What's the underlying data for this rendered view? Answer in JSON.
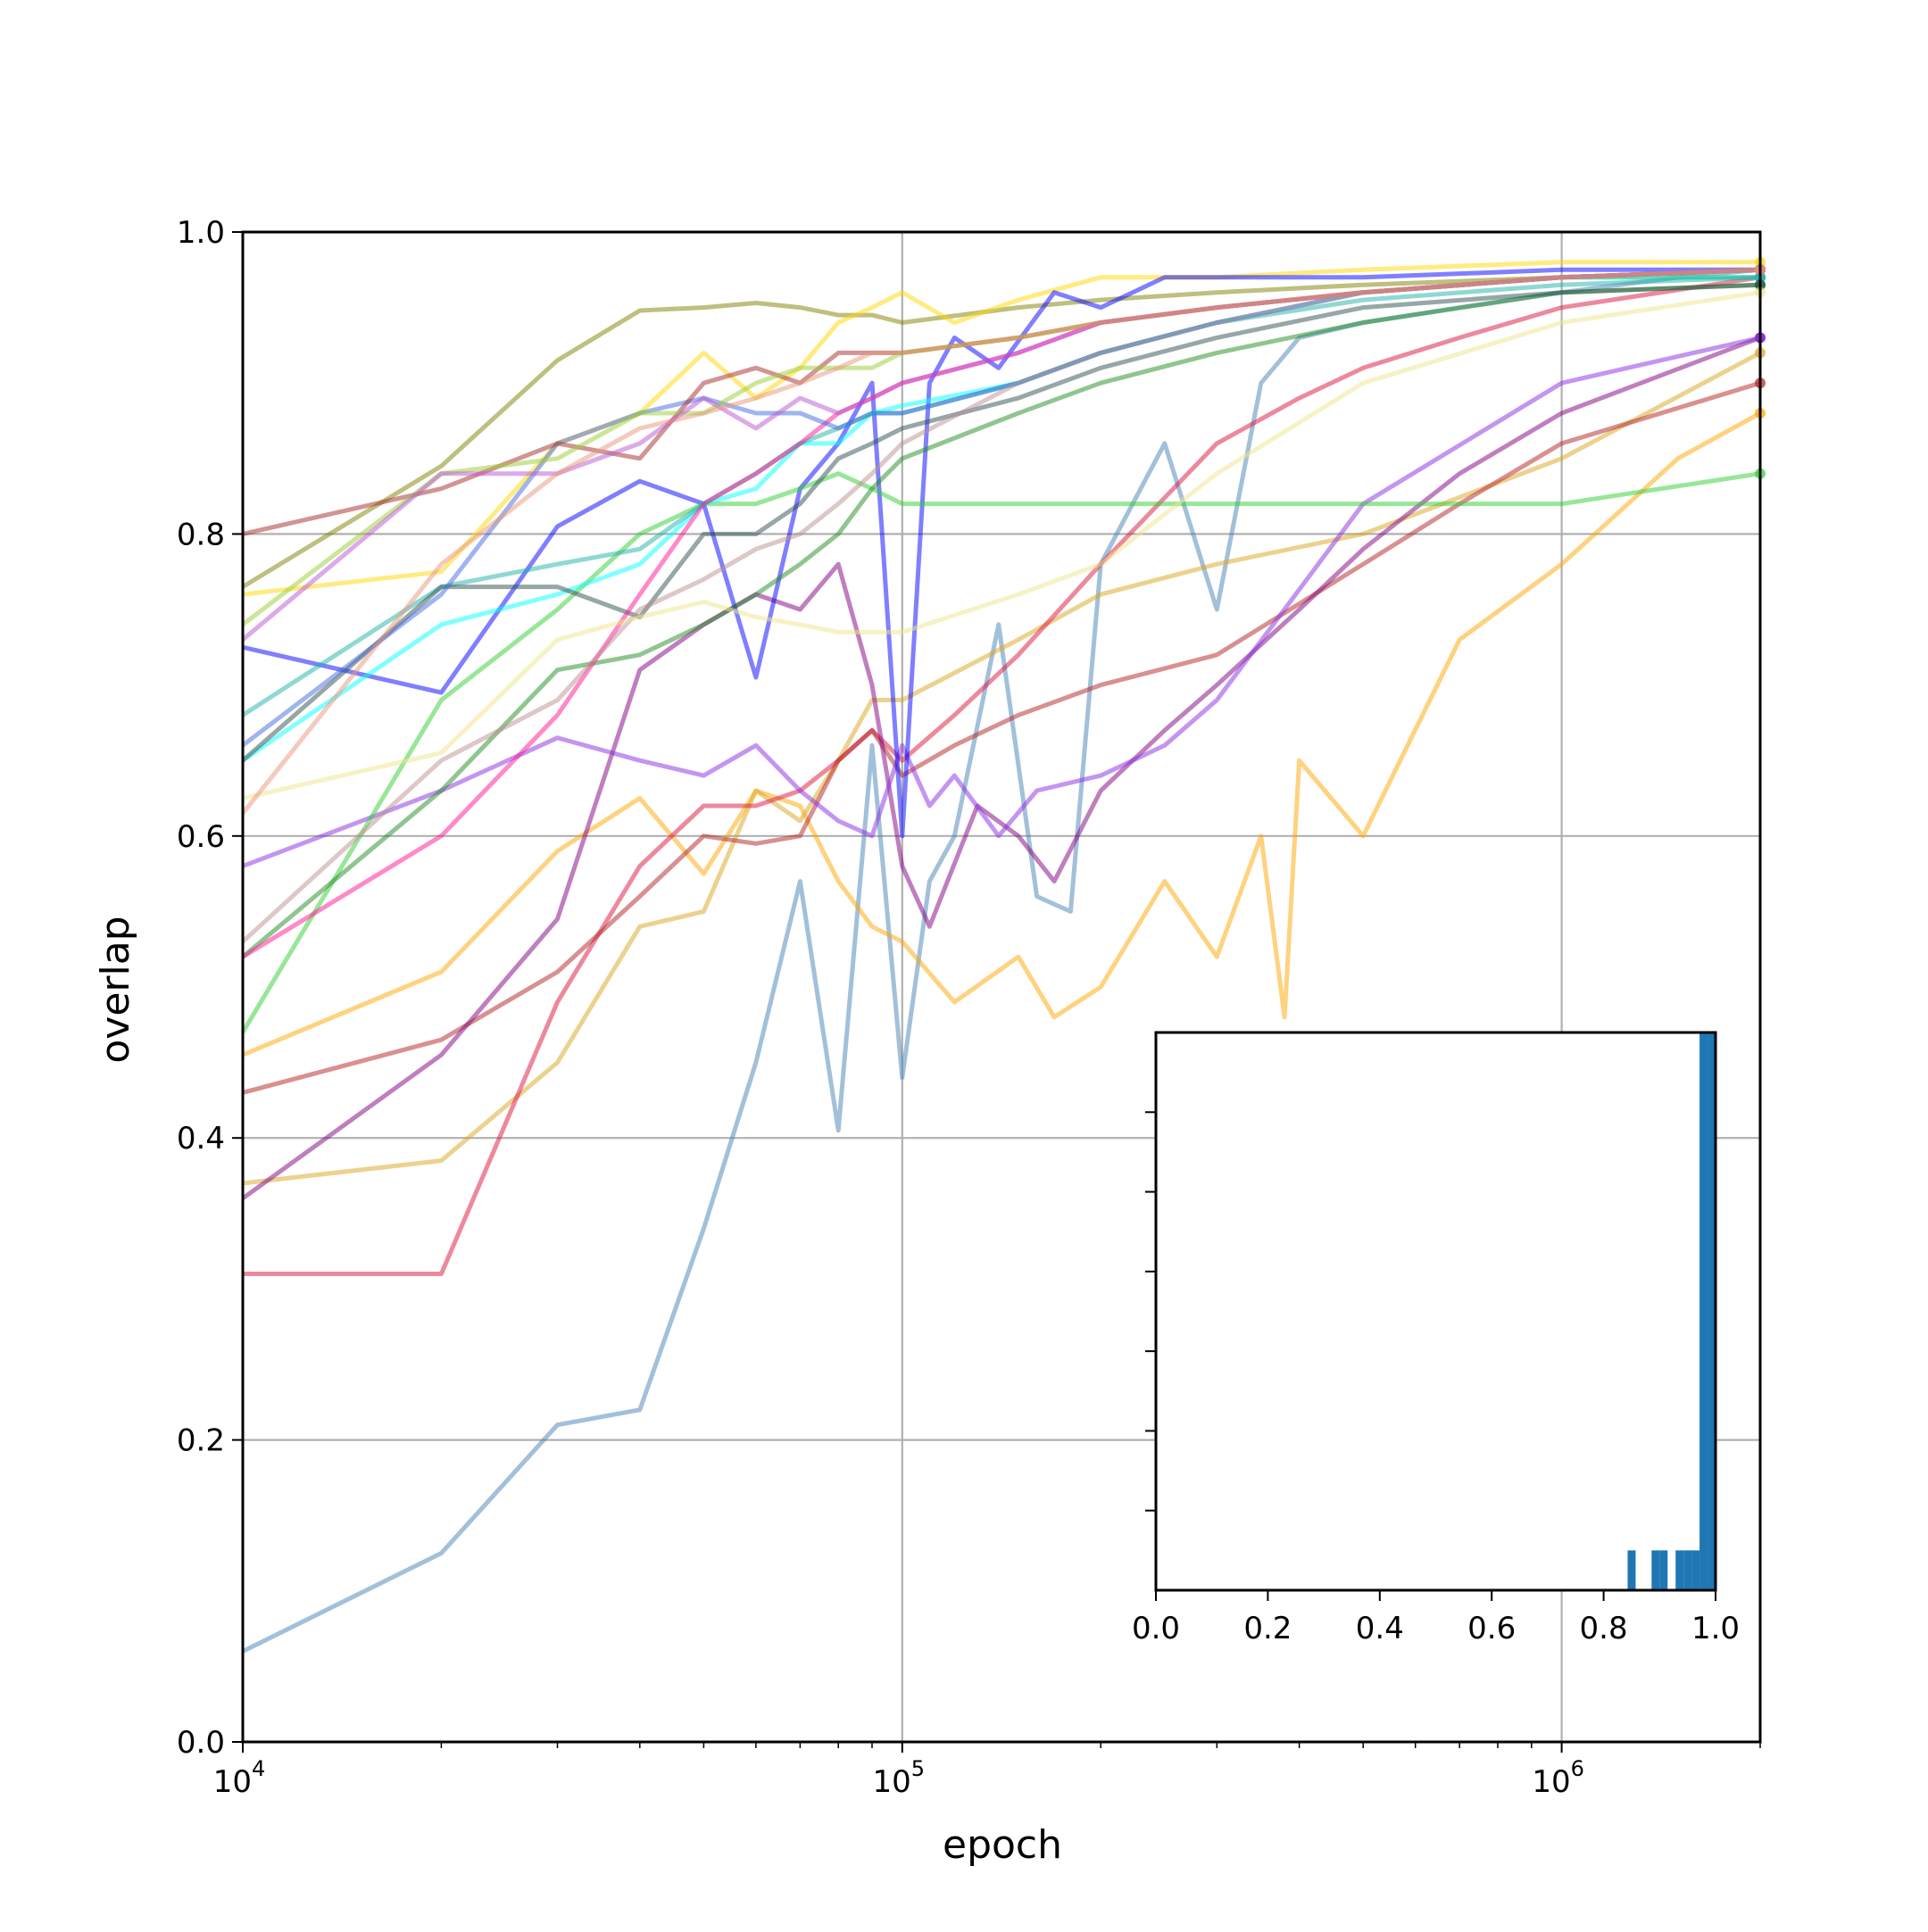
{
  "chart_data": [
    {
      "type": "line",
      "title": "",
      "xlabel": "epoch",
      "ylabel": "overlap",
      "xscale": "log",
      "xlim": [
        10000,
        2000000
      ],
      "ylim": [
        0.0,
        1.0
      ],
      "grid": true,
      "x_ticks": [
        {
          "value": 10000,
          "base": "10",
          "exp": "4"
        },
        {
          "value": 100000,
          "base": "10",
          "exp": "5"
        },
        {
          "value": 1000000,
          "base": "10",
          "exp": "6"
        }
      ],
      "y_ticks": [
        "0.0",
        "0.2",
        "0.4",
        "0.6",
        "0.8",
        "1.0"
      ],
      "series": [
        {
          "color": "#4682b4",
          "x": [
            10000,
            20000,
            30000,
            40000,
            50000,
            60000,
            70000,
            80000,
            90000,
            100000,
            110000,
            120000,
            140000,
            160000,
            180000,
            200000,
            250000,
            300000,
            350000,
            400000,
            500000,
            700000,
            1000000,
            1500000,
            2000000
          ],
          "y": [
            0.06,
            0.125,
            0.21,
            0.22,
            0.34,
            0.45,
            0.57,
            0.405,
            0.66,
            0.44,
            0.57,
            0.6,
            0.74,
            0.56,
            0.55,
            0.78,
            0.86,
            0.75,
            0.9,
            0.93,
            0.94,
            0.95,
            0.96,
            0.97,
            0.975
          ]
        },
        {
          "color": "#808000",
          "x": [
            10000,
            20000,
            30000,
            40000,
            50000,
            60000,
            70000,
            80000,
            90000,
            100000,
            150000,
            200000,
            300000,
            500000,
            1000000,
            2000000
          ],
          "y": [
            0.765,
            0.845,
            0.915,
            0.948,
            0.95,
            0.953,
            0.95,
            0.945,
            0.945,
            0.94,
            0.95,
            0.955,
            0.96,
            0.965,
            0.97,
            0.97
          ]
        },
        {
          "color": "#ffd700",
          "x": [
            10000,
            20000,
            30000,
            40000,
            50000,
            60000,
            70000,
            80000,
            90000,
            100000,
            120000,
            150000,
            200000,
            300000,
            500000,
            1000000,
            2000000
          ],
          "y": [
            0.76,
            0.775,
            0.86,
            0.88,
            0.92,
            0.89,
            0.91,
            0.94,
            0.95,
            0.96,
            0.94,
            0.955,
            0.97,
            0.97,
            0.975,
            0.98,
            0.98
          ]
        },
        {
          "color": "#ffa500",
          "x": [
            10000,
            20000,
            30000,
            40000,
            50000,
            60000,
            70000,
            80000,
            90000,
            100000,
            120000,
            150000,
            170000,
            200000,
            250000,
            300000,
            350000,
            380000,
            400000,
            500000,
            700000,
            1000000,
            1500000,
            2000000
          ],
          "y": [
            0.455,
            0.51,
            0.59,
            0.625,
            0.575,
            0.63,
            0.62,
            0.57,
            0.54,
            0.53,
            0.49,
            0.52,
            0.48,
            0.5,
            0.57,
            0.52,
            0.6,
            0.48,
            0.65,
            0.6,
            0.73,
            0.78,
            0.85,
            0.88
          ]
        },
        {
          "color": "#daa520",
          "x": [
            10000,
            20000,
            30000,
            40000,
            50000,
            60000,
            70000,
            80000,
            90000,
            100000,
            150000,
            200000,
            300000,
            500000,
            1000000,
            2000000
          ],
          "y": [
            0.37,
            0.385,
            0.45,
            0.54,
            0.55,
            0.63,
            0.61,
            0.65,
            0.69,
            0.69,
            0.73,
            0.76,
            0.78,
            0.8,
            0.85,
            0.92
          ]
        },
        {
          "color": "#dc143c",
          "x": [
            10000,
            20000,
            30000,
            40000,
            50000,
            60000,
            70000,
            80000,
            90000,
            100000,
            120000,
            150000,
            200000,
            300000,
            400000,
            500000,
            700000,
            1000000,
            2000000
          ],
          "y": [
            0.31,
            0.31,
            0.49,
            0.58,
            0.62,
            0.62,
            0.63,
            0.65,
            0.67,
            0.65,
            0.68,
            0.72,
            0.78,
            0.86,
            0.89,
            0.91,
            0.93,
            0.95,
            0.97
          ]
        },
        {
          "color": "#b22222",
          "x": [
            10000,
            20000,
            30000,
            40000,
            50000,
            60000,
            70000,
            80000,
            90000,
            100000,
            120000,
            150000,
            200000,
            300000,
            500000,
            700000,
            1000000,
            2000000
          ],
          "y": [
            0.43,
            0.465,
            0.51,
            0.56,
            0.6,
            0.595,
            0.6,
            0.65,
            0.67,
            0.64,
            0.66,
            0.68,
            0.7,
            0.72,
            0.78,
            0.82,
            0.86,
            0.9
          ]
        },
        {
          "color": "#800080",
          "x": [
            10000,
            20000,
            30000,
            40000,
            50000,
            60000,
            70000,
            80000,
            90000,
            100000,
            110000,
            130000,
            150000,
            170000,
            200000,
            250000,
            300000,
            400000,
            500000,
            700000,
            1000000,
            2000000
          ],
          "y": [
            0.36,
            0.455,
            0.545,
            0.71,
            0.74,
            0.76,
            0.75,
            0.78,
            0.7,
            0.58,
            0.54,
            0.62,
            0.6,
            0.57,
            0.63,
            0.67,
            0.7,
            0.75,
            0.79,
            0.84,
            0.88,
            0.93
          ]
        },
        {
          "color": "#8a2be2",
          "x": [
            10000,
            20000,
            30000,
            40000,
            50000,
            60000,
            70000,
            80000,
            90000,
            100000,
            110000,
            120000,
            140000,
            160000,
            200000,
            250000,
            300000,
            500000,
            1000000,
            2000000
          ],
          "y": [
            0.58,
            0.63,
            0.665,
            0.65,
            0.64,
            0.66,
            0.63,
            0.61,
            0.6,
            0.66,
            0.62,
            0.64,
            0.6,
            0.63,
            0.64,
            0.66,
            0.69,
            0.82,
            0.9,
            0.93
          ]
        },
        {
          "color": "#0000ff",
          "x": [
            10000,
            20000,
            30000,
            40000,
            50000,
            60000,
            70000,
            80000,
            90000,
            100000,
            110000,
            120000,
            140000,
            170000,
            200000,
            250000,
            300000,
            500000,
            1000000,
            2000000
          ],
          "y": [
            0.725,
            0.695,
            0.805,
            0.835,
            0.82,
            0.705,
            0.83,
            0.86,
            0.9,
            0.6,
            0.9,
            0.93,
            0.91,
            0.96,
            0.95,
            0.97,
            0.97,
            0.97,
            0.975,
            0.975
          ]
        },
        {
          "color": "#32cd32",
          "x": [
            10000,
            20000,
            30000,
            40000,
            50000,
            60000,
            70000,
            80000,
            90000,
            100000,
            150000,
            200000,
            300000,
            500000,
            1000000,
            2000000
          ],
          "y": [
            0.47,
            0.69,
            0.75,
            0.8,
            0.82,
            0.82,
            0.83,
            0.84,
            0.83,
            0.82,
            0.82,
            0.82,
            0.82,
            0.82,
            0.82,
            0.84
          ]
        },
        {
          "color": "#228b22",
          "x": [
            10000,
            20000,
            30000,
            40000,
            50000,
            60000,
            70000,
            80000,
            90000,
            100000,
            150000,
            200000,
            300000,
            500000,
            1000000,
            2000000
          ],
          "y": [
            0.52,
            0.63,
            0.71,
            0.72,
            0.74,
            0.76,
            0.78,
            0.8,
            0.83,
            0.85,
            0.88,
            0.9,
            0.92,
            0.94,
            0.96,
            0.965
          ]
        },
        {
          "color": "#00ffff",
          "x": [
            10000,
            20000,
            30000,
            40000,
            50000,
            60000,
            70000,
            80000,
            90000,
            100000,
            150000,
            200000,
            300000,
            500000,
            1000000,
            2000000
          ],
          "y": [
            0.65,
            0.74,
            0.76,
            0.78,
            0.82,
            0.83,
            0.86,
            0.86,
            0.88,
            0.885,
            0.9,
            0.92,
            0.94,
            0.96,
            0.97,
            0.97
          ]
        },
        {
          "color": "#20b2aa",
          "x": [
            10000,
            20000,
            30000,
            40000,
            50000,
            60000,
            70000,
            80000,
            90000,
            100000,
            150000,
            200000,
            300000,
            500000,
            1000000,
            2000000
          ],
          "y": [
            0.68,
            0.765,
            0.78,
            0.79,
            0.82,
            0.84,
            0.86,
            0.87,
            0.88,
            0.88,
            0.9,
            0.92,
            0.94,
            0.955,
            0.965,
            0.97
          ]
        },
        {
          "color": "#2f4f4f",
          "x": [
            10000,
            20000,
            30000,
            40000,
            50000,
            60000,
            70000,
            80000,
            90000,
            100000,
            150000,
            200000,
            300000,
            500000,
            1000000,
            2000000
          ],
          "y": [
            0.65,
            0.765,
            0.765,
            0.745,
            0.8,
            0.8,
            0.82,
            0.85,
            0.86,
            0.87,
            0.89,
            0.91,
            0.93,
            0.95,
            0.96,
            0.965
          ]
        },
        {
          "color": "#ff1493",
          "x": [
            10000,
            20000,
            30000,
            40000,
            50000,
            60000,
            70000,
            80000,
            90000,
            100000,
            150000,
            200000,
            300000,
            500000,
            1000000,
            2000000
          ],
          "y": [
            0.52,
            0.6,
            0.68,
            0.76,
            0.82,
            0.84,
            0.86,
            0.88,
            0.89,
            0.9,
            0.92,
            0.94,
            0.95,
            0.96,
            0.97,
            0.975
          ]
        },
        {
          "color": "#4169e1",
          "x": [
            10000,
            20000,
            30000,
            40000,
            50000,
            60000,
            70000,
            80000,
            90000,
            100000,
            150000,
            200000,
            300000,
            500000,
            1000000,
            2000000
          ],
          "y": [
            0.66,
            0.76,
            0.86,
            0.88,
            0.89,
            0.88,
            0.88,
            0.87,
            0.88,
            0.88,
            0.9,
            0.92,
            0.94,
            0.96,
            0.97,
            0.975
          ]
        },
        {
          "color": "#bc8f8f",
          "x": [
            10000,
            20000,
            30000,
            40000,
            50000,
            60000,
            70000,
            80000,
            90000,
            100000,
            150000,
            200000,
            300000,
            500000,
            1000000,
            2000000
          ],
          "y": [
            0.53,
            0.65,
            0.69,
            0.75,
            0.77,
            0.79,
            0.8,
            0.82,
            0.84,
            0.86,
            0.9,
            0.92,
            0.94,
            0.96,
            0.97,
            0.975
          ]
        },
        {
          "color": "#a52a2a",
          "x": [
            10000,
            20000,
            30000,
            40000,
            50000,
            60000,
            70000,
            80000,
            90000,
            100000,
            150000,
            200000,
            300000,
            500000,
            1000000,
            2000000
          ],
          "y": [
            0.8,
            0.83,
            0.86,
            0.85,
            0.9,
            0.91,
            0.9,
            0.92,
            0.92,
            0.92,
            0.93,
            0.94,
            0.95,
            0.96,
            0.97,
            0.975
          ]
        },
        {
          "color": "#9acd32",
          "x": [
            10000,
            20000,
            30000,
            40000,
            50000,
            60000,
            70000,
            80000,
            90000,
            100000,
            150000,
            200000,
            300000,
            500000,
            1000000,
            2000000
          ],
          "y": [
            0.74,
            0.84,
            0.85,
            0.88,
            0.88,
            0.9,
            0.91,
            0.91,
            0.91,
            0.92,
            0.93,
            0.94,
            0.95,
            0.96,
            0.97,
            0.975
          ]
        },
        {
          "color": "#ba55d3",
          "x": [
            10000,
            20000,
            30000,
            40000,
            50000,
            60000,
            70000,
            80000,
            90000,
            100000,
            150000,
            200000,
            300000,
            500000,
            1000000,
            2000000
          ],
          "y": [
            0.73,
            0.84,
            0.84,
            0.86,
            0.89,
            0.87,
            0.89,
            0.88,
            0.89,
            0.9,
            0.92,
            0.94,
            0.95,
            0.96,
            0.97,
            0.975
          ]
        },
        {
          "color": "#f0e68c",
          "x": [
            10000,
            20000,
            30000,
            40000,
            50000,
            60000,
            70000,
            80000,
            90000,
            100000,
            150000,
            200000,
            300000,
            500000,
            1000000,
            2000000
          ],
          "y": [
            0.625,
            0.655,
            0.73,
            0.745,
            0.755,
            0.745,
            0.74,
            0.735,
            0.735,
            0.735,
            0.76,
            0.78,
            0.84,
            0.9,
            0.94,
            0.96
          ]
        },
        {
          "color": "#e9967a",
          "x": [
            10000,
            20000,
            30000,
            40000,
            50000,
            60000,
            70000,
            80000,
            90000,
            100000,
            150000,
            200000,
            300000,
            500000,
            1000000,
            2000000
          ],
          "y": [
            0.615,
            0.78,
            0.84,
            0.87,
            0.88,
            0.89,
            0.9,
            0.91,
            0.92,
            0.92,
            0.93,
            0.94,
            0.95,
            0.96,
            0.97,
            0.975
          ]
        }
      ]
    },
    {
      "type": "bar",
      "title": "",
      "xlabel": "",
      "ylabel": "",
      "xlim": [
        0.0,
        1.0
      ],
      "bar_color": "#1f77b4",
      "x_ticks": [
        "0.0",
        "0.2",
        "0.4",
        "0.6",
        "0.8",
        "1.0"
      ],
      "bin_width": 0.0143,
      "bins": [
        {
          "x": 0.8429,
          "count": 1
        },
        {
          "x": 0.8857,
          "count": 1
        },
        {
          "x": 0.9,
          "count": 1
        },
        {
          "x": 0.9286,
          "count": 1
        },
        {
          "x": 0.9429,
          "count": 1
        },
        {
          "x": 0.9571,
          "count": 1
        },
        {
          "x": 0.9714,
          "count": 14
        },
        {
          "x": 0.9857,
          "count": 14
        }
      ]
    }
  ]
}
